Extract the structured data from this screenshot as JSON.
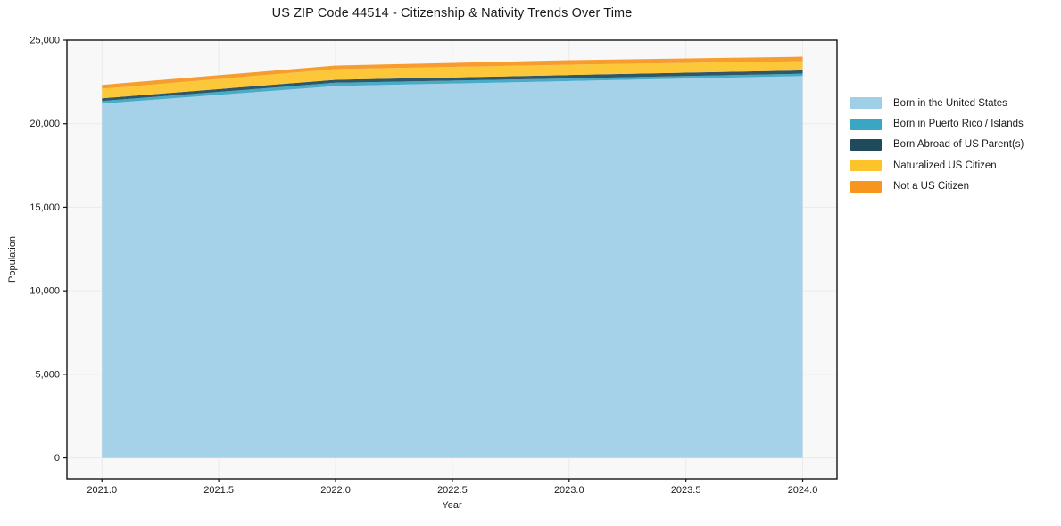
{
  "chart": {
    "title": "US ZIP Code 44514 - Citizenship & Nativity Trends Over Time",
    "xlabel": "Year",
    "ylabel": "Population"
  },
  "chart_data": {
    "type": "area",
    "stacked": true,
    "title": "US ZIP Code 44514 - Citizenship & Nativity Trends Over Time",
    "xlabel": "Year",
    "ylabel": "Population",
    "x": [
      2021,
      2022,
      2023,
      2024
    ],
    "series": [
      {
        "name": "Born in the United States",
        "color": "#9ecfe7",
        "values": [
          21200,
          22250,
          22550,
          22850
        ]
      },
      {
        "name": "Born in Puerto Rico / Islands",
        "color": "#3aa6c4",
        "values": [
          160,
          200,
          160,
          140
        ]
      },
      {
        "name": "Born Abroad of US Parent(s)",
        "color": "#1f4a5c",
        "values": [
          160,
          175,
          200,
          200
        ]
      },
      {
        "name": "Naturalized US Citizen",
        "color": "#fcc32a",
        "values": [
          570,
          640,
          620,
          550
        ]
      },
      {
        "name": "Not a US Citizen",
        "color": "#f6961f",
        "values": [
          230,
          215,
          270,
          270
        ]
      }
    ],
    "x_ticks": [
      {
        "value": 2021.0,
        "label": "2021.0"
      },
      {
        "value": 2021.5,
        "label": "2021.5"
      },
      {
        "value": 2022.0,
        "label": "2022.0"
      },
      {
        "value": 2022.5,
        "label": "2022.5"
      },
      {
        "value": 2023.0,
        "label": "2023.0"
      },
      {
        "value": 2023.5,
        "label": "2023.5"
      },
      {
        "value": 2024.0,
        "label": "2024.0"
      }
    ],
    "y_ticks": [
      {
        "value": 0,
        "label": "0"
      },
      {
        "value": 5000,
        "label": "5,000"
      },
      {
        "value": 10000,
        "label": "10,000"
      },
      {
        "value": 15000,
        "label": "15,000"
      },
      {
        "value": 20000,
        "label": "20,000"
      },
      {
        "value": 25000,
        "label": "25,000"
      }
    ],
    "xlim": [
      2020.85,
      2024.147
    ],
    "ylim": [
      -1250,
      25000
    ],
    "grid": true,
    "legend_position": "right outside"
  },
  "colors": {
    "figure_background": "#ffffff",
    "plot_background": "#f8f8f8",
    "grid": "#ebebee",
    "axis_line": "#141414",
    "text": "#1a1a1a"
  }
}
